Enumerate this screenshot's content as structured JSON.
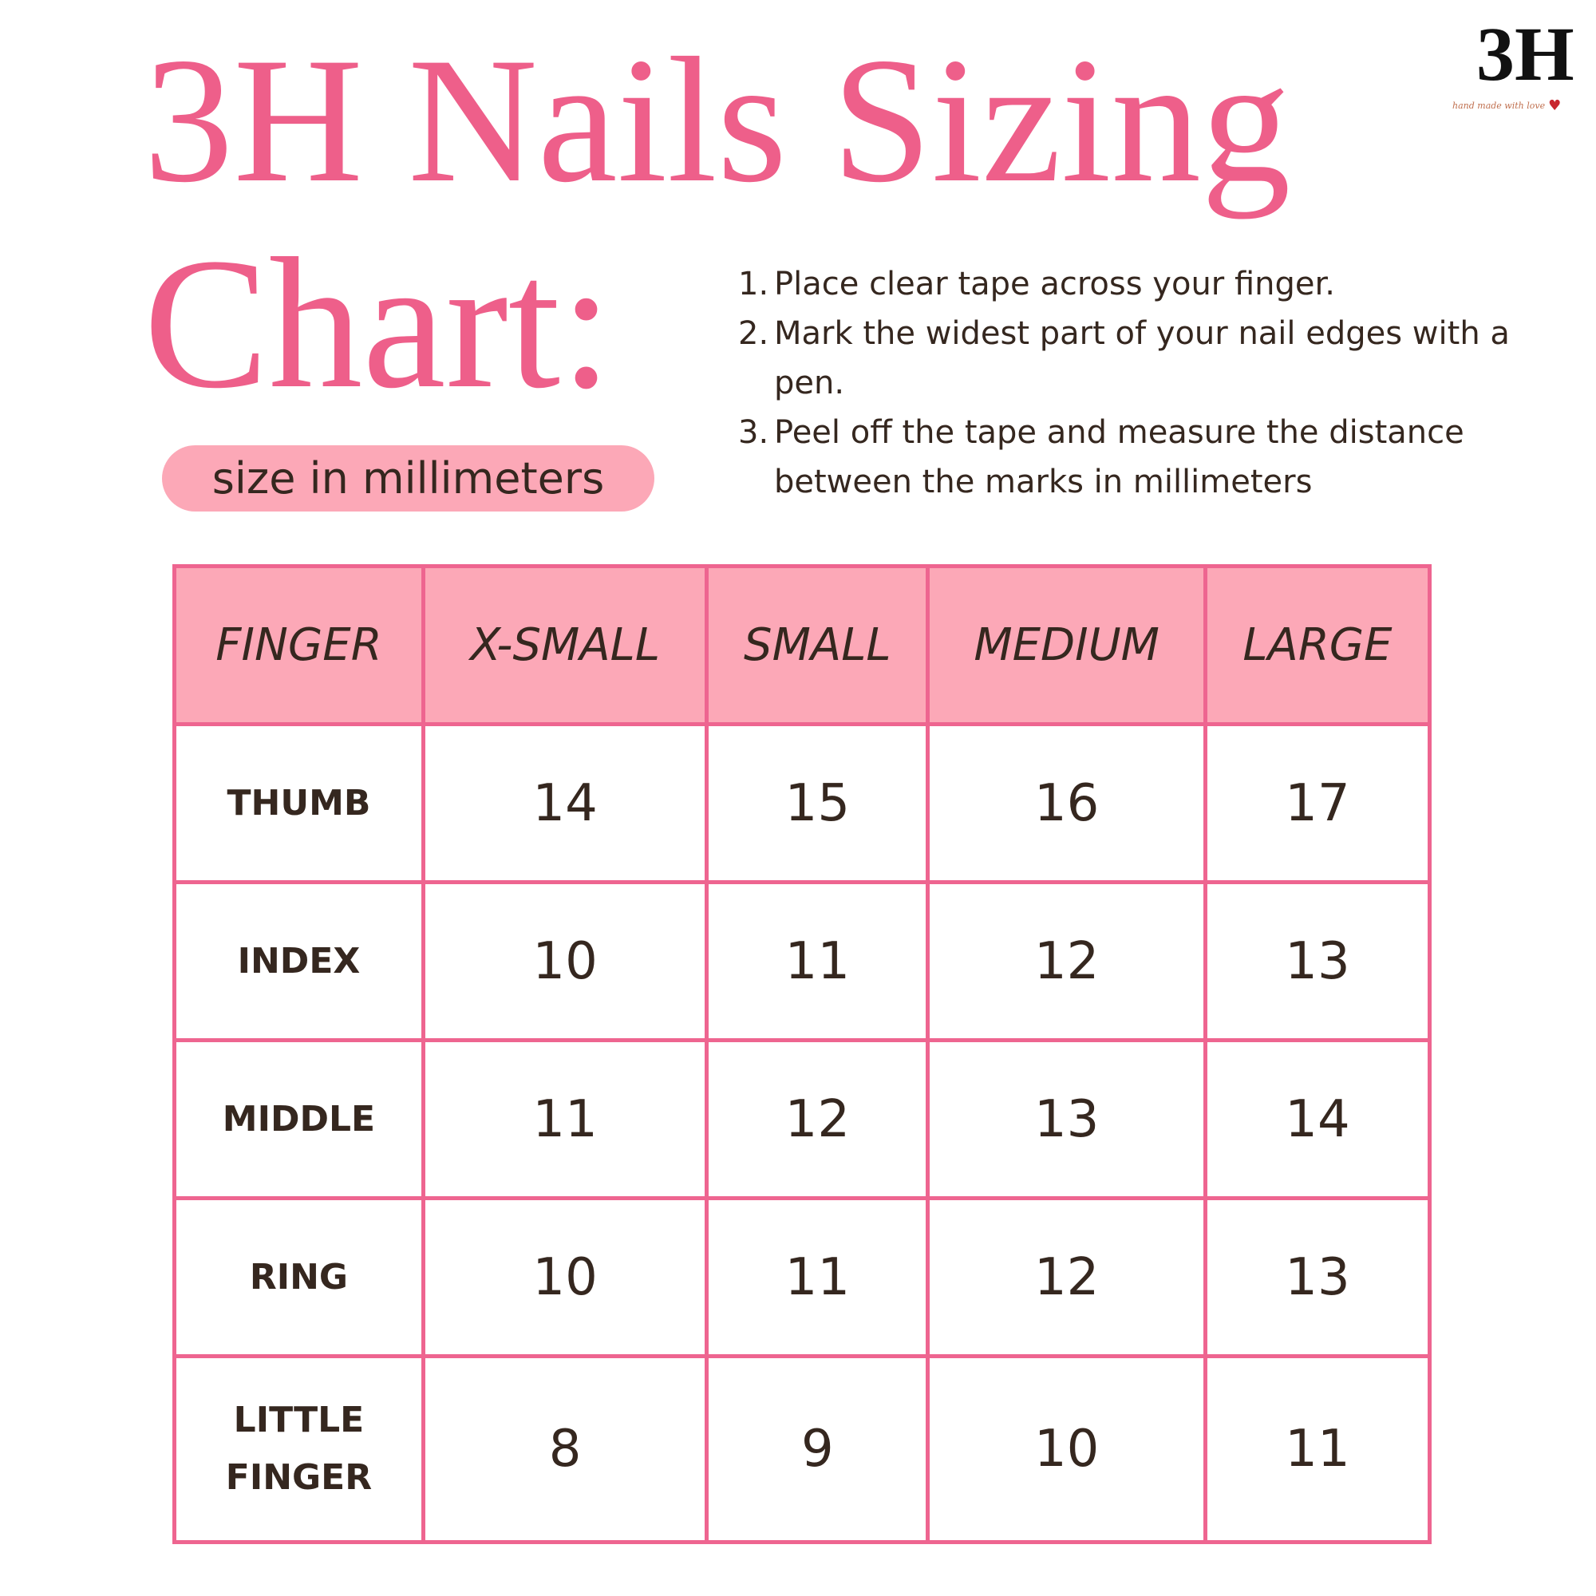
{
  "title": {
    "line1": "3H Nails Sizing",
    "line2": "Chart:"
  },
  "subtitle_pill": "size in millimeters",
  "instructions": [
    {
      "num": "1.",
      "text": "Place clear tape across your finger."
    },
    {
      "num": "2.",
      "text": "Mark the widest part of your nail edges with a pen."
    },
    {
      "num": "3.",
      "text": "Peel off the tape and measure the distance between the marks in millimeters"
    }
  ],
  "logo": {
    "mark": "3H",
    "tagline": "hand made with love"
  },
  "colors": {
    "accent": "#ee5f8a",
    "header_bg": "#fca8b7",
    "border": "#ee6590",
    "text": "#35271f"
  },
  "table": {
    "headers": [
      "FINGER",
      "X-SMALL",
      "SMALL",
      "MEDIUM",
      "LARGE"
    ],
    "rows": [
      {
        "finger": "THUMB",
        "values": [
          "14",
          "15",
          "16",
          "17"
        ]
      },
      {
        "finger": "INDEX",
        "values": [
          "10",
          "11",
          "12",
          "13"
        ]
      },
      {
        "finger": "MIDDLE",
        "values": [
          "11",
          "12",
          "13",
          "14"
        ]
      },
      {
        "finger": "RING",
        "values": [
          "10",
          "11",
          "12",
          "13"
        ]
      },
      {
        "finger": "LITTLE FINGER",
        "values": [
          "8",
          "9",
          "10",
          "11"
        ]
      }
    ]
  }
}
